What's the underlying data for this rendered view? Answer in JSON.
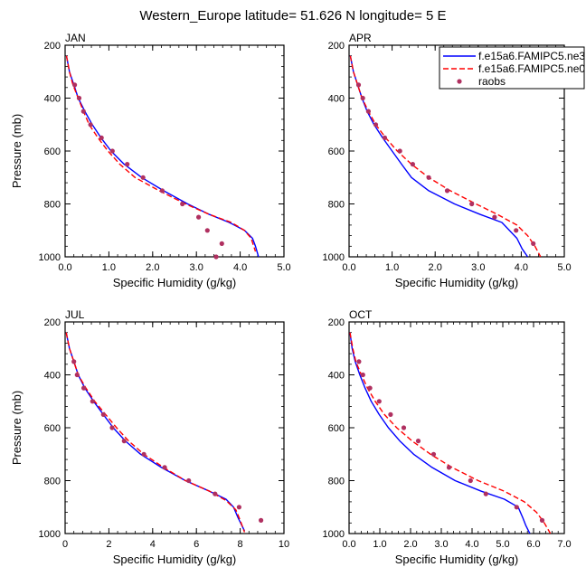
{
  "title": "Western_Europe  latitude= 51.626 N longitude= 5 E",
  "colors": {
    "model1": "#0000ff",
    "model2": "#ff0000",
    "obs": "#b03060"
  },
  "legend": {
    "placement": "top-right of APR panel",
    "entries": [
      {
        "label": "f.e15a6.FAMIPC5.ne3",
        "style": "solid",
        "color": "#0000ff"
      },
      {
        "label": "f.e15a6.FAMIPC5.ne0",
        "style": "dashed",
        "color": "#ff0000"
      },
      {
        "label": "raobs",
        "style": "marker",
        "color": "#b03060"
      }
    ]
  },
  "chart_data": [
    {
      "type": "line",
      "panel": "JAN",
      "title": "JAN",
      "xlabel": "Specific Humidity (g/kg)",
      "ylabel": "Pressure (mb)",
      "xlim": [
        0,
        5
      ],
      "ylim": [
        200,
        1000
      ],
      "y_reversed": true,
      "xticks": [
        0,
        1,
        2,
        3,
        4,
        5
      ],
      "xtick_labels": [
        "0.0",
        "1.0",
        "2.0",
        "3.0",
        "4.0",
        "5.0"
      ],
      "yticks": [
        200,
        400,
        600,
        800,
        1000
      ],
      "series": [
        {
          "kind": "solid",
          "points": [
            [
              0.03,
              240
            ],
            [
              0.1,
              300
            ],
            [
              0.2,
              350
            ],
            [
              0.3,
              400
            ],
            [
              0.45,
              450
            ],
            [
              0.62,
              500
            ],
            [
              0.82,
              550
            ],
            [
              1.05,
              600
            ],
            [
              1.35,
              650
            ],
            [
              1.75,
              700
            ],
            [
              2.25,
              750
            ],
            [
              2.8,
              800
            ],
            [
              3.3,
              840
            ],
            [
              3.75,
              870
            ],
            [
              4.1,
              900
            ],
            [
              4.28,
              930
            ],
            [
              4.35,
              960
            ],
            [
              4.42,
              1000
            ]
          ]
        },
        {
          "kind": "dashed",
          "points": [
            [
              0.03,
              240
            ],
            [
              0.1,
              300
            ],
            [
              0.18,
              350
            ],
            [
              0.3,
              400
            ],
            [
              0.42,
              450
            ],
            [
              0.55,
              500
            ],
            [
              0.75,
              550
            ],
            [
              0.98,
              600
            ],
            [
              1.25,
              650
            ],
            [
              1.6,
              700
            ],
            [
              2.15,
              750
            ],
            [
              2.75,
              800
            ],
            [
              3.3,
              840
            ],
            [
              3.8,
              870
            ],
            [
              4.1,
              900
            ],
            [
              4.25,
              930
            ],
            [
              4.35,
              980
            ]
          ]
        }
      ],
      "obs": [
        [
          0.22,
          350
        ],
        [
          0.32,
          400
        ],
        [
          0.42,
          450
        ],
        [
          0.58,
          500
        ],
        [
          0.83,
          550
        ],
        [
          1.08,
          600
        ],
        [
          1.42,
          650
        ],
        [
          1.78,
          700
        ],
        [
          2.22,
          750
        ],
        [
          2.68,
          800
        ],
        [
          3.05,
          850
        ],
        [
          3.25,
          900
        ],
        [
          3.58,
          950
        ],
        [
          3.45,
          1000
        ]
      ]
    },
    {
      "type": "line",
      "panel": "APR",
      "title": "APR",
      "xlabel": "Specific Humidity (g/kg)",
      "ylabel": "",
      "xlim": [
        0,
        5
      ],
      "ylim": [
        200,
        1000
      ],
      "y_reversed": true,
      "xticks": [
        0,
        1,
        2,
        3,
        4,
        5
      ],
      "xtick_labels": [
        "0.0",
        "1.0",
        "2.0",
        "3.0",
        "4.0",
        "5.0"
      ],
      "yticks": [
        200,
        400,
        600,
        800,
        1000
      ],
      "series": [
        {
          "kind": "solid",
          "points": [
            [
              0.03,
              240
            ],
            [
              0.1,
              300
            ],
            [
              0.2,
              350
            ],
            [
              0.3,
              400
            ],
            [
              0.42,
              450
            ],
            [
              0.58,
              500
            ],
            [
              0.78,
              550
            ],
            [
              1.0,
              600
            ],
            [
              1.22,
              650
            ],
            [
              1.45,
              700
            ],
            [
              1.85,
              750
            ],
            [
              2.45,
              800
            ],
            [
              3.05,
              840
            ],
            [
              3.55,
              870
            ],
            [
              3.9,
              930
            ],
            [
              4.02,
              970
            ],
            [
              4.15,
              1000
            ]
          ]
        },
        {
          "kind": "dashed",
          "points": [
            [
              0.03,
              240
            ],
            [
              0.1,
              300
            ],
            [
              0.2,
              350
            ],
            [
              0.3,
              400
            ],
            [
              0.45,
              450
            ],
            [
              0.62,
              500
            ],
            [
              0.85,
              550
            ],
            [
              1.12,
              600
            ],
            [
              1.45,
              650
            ],
            [
              1.85,
              700
            ],
            [
              2.35,
              750
            ],
            [
              2.95,
              800
            ],
            [
              3.45,
              840
            ],
            [
              3.9,
              880
            ],
            [
              4.15,
              920
            ],
            [
              4.32,
              960
            ],
            [
              4.45,
              1000
            ]
          ]
        }
      ],
      "obs": [
        [
          0.22,
          350
        ],
        [
          0.32,
          400
        ],
        [
          0.45,
          450
        ],
        [
          0.62,
          500
        ],
        [
          0.83,
          550
        ],
        [
          1.18,
          600
        ],
        [
          1.48,
          650
        ],
        [
          1.85,
          700
        ],
        [
          2.28,
          750
        ],
        [
          2.85,
          800
        ],
        [
          3.38,
          850
        ],
        [
          3.88,
          900
        ],
        [
          4.28,
          950
        ]
      ]
    },
    {
      "type": "line",
      "panel": "JUL",
      "title": "JUL",
      "xlabel": "Specific Humidity (g/kg)",
      "ylabel": "Pressure (mb)",
      "xlim": [
        0,
        10
      ],
      "ylim": [
        200,
        1000
      ],
      "y_reversed": true,
      "xticks": [
        0,
        2,
        4,
        6,
        8,
        10
      ],
      "xtick_labels": [
        "0",
        "2",
        "4",
        "6",
        "8",
        "10"
      ],
      "yticks": [
        200,
        400,
        600,
        800,
        1000
      ],
      "series": [
        {
          "kind": "solid",
          "points": [
            [
              0.05,
              240
            ],
            [
              0.2,
              300
            ],
            [
              0.4,
              350
            ],
            [
              0.6,
              400
            ],
            [
              0.9,
              450
            ],
            [
              1.3,
              500
            ],
            [
              1.75,
              550
            ],
            [
              2.2,
              600
            ],
            [
              2.75,
              650
            ],
            [
              3.45,
              700
            ],
            [
              4.4,
              750
            ],
            [
              5.5,
              800
            ],
            [
              6.6,
              840
            ],
            [
              7.35,
              870
            ],
            [
              7.7,
              900
            ],
            [
              7.9,
              940
            ],
            [
              8.2,
              990
            ]
          ]
        },
        {
          "kind": "dashed",
          "points": [
            [
              0.05,
              240
            ],
            [
              0.2,
              300
            ],
            [
              0.4,
              350
            ],
            [
              0.6,
              400
            ],
            [
              0.95,
              450
            ],
            [
              1.35,
              500
            ],
            [
              1.85,
              550
            ],
            [
              2.35,
              600
            ],
            [
              2.9,
              650
            ],
            [
              3.6,
              700
            ],
            [
              4.5,
              750
            ],
            [
              5.5,
              800
            ],
            [
              6.6,
              840
            ],
            [
              7.35,
              875
            ],
            [
              7.8,
              910
            ],
            [
              8.0,
              950
            ],
            [
              8.2,
              995
            ]
          ]
        }
      ],
      "obs": [
        [
          0.4,
          350
        ],
        [
          0.55,
          400
        ],
        [
          0.85,
          450
        ],
        [
          1.25,
          500
        ],
        [
          1.75,
          550
        ],
        [
          2.15,
          600
        ],
        [
          2.7,
          650
        ],
        [
          3.6,
          700
        ],
        [
          4.55,
          750
        ],
        [
          5.65,
          800
        ],
        [
          6.85,
          850
        ],
        [
          7.95,
          900
        ],
        [
          8.95,
          950
        ]
      ]
    },
    {
      "type": "line",
      "panel": "OCT",
      "title": "OCT",
      "xlabel": "Specific Humidity (g/kg)",
      "ylabel": "",
      "xlim": [
        0,
        7
      ],
      "ylim": [
        200,
        1000
      ],
      "y_reversed": true,
      "xticks": [
        0,
        1,
        2,
        3,
        4,
        5,
        6,
        7
      ],
      "xtick_labels": [
        "0.0",
        "1.0",
        "2.0",
        "3.0",
        "4.0",
        "5.0",
        "6.0",
        "7.0"
      ],
      "yticks": [
        200,
        400,
        600,
        800,
        1000
      ],
      "series": [
        {
          "kind": "solid",
          "points": [
            [
              0.03,
              240
            ],
            [
              0.1,
              300
            ],
            [
              0.2,
              350
            ],
            [
              0.35,
              400
            ],
            [
              0.52,
              450
            ],
            [
              0.72,
              500
            ],
            [
              0.98,
              550
            ],
            [
              1.28,
              600
            ],
            [
              1.65,
              650
            ],
            [
              2.1,
              700
            ],
            [
              2.7,
              750
            ],
            [
              3.45,
              800
            ],
            [
              4.3,
              840
            ],
            [
              5.05,
              870
            ],
            [
              5.5,
              900
            ],
            [
              5.65,
              940
            ],
            [
              5.75,
              970
            ],
            [
              5.88,
              1000
            ]
          ]
        },
        {
          "kind": "dashed",
          "points": [
            [
              0.03,
              240
            ],
            [
              0.12,
              300
            ],
            [
              0.22,
              350
            ],
            [
              0.4,
              400
            ],
            [
              0.6,
              450
            ],
            [
              0.85,
              500
            ],
            [
              1.15,
              550
            ],
            [
              1.55,
              600
            ],
            [
              2.05,
              650
            ],
            [
              2.65,
              700
            ],
            [
              3.35,
              750
            ],
            [
              4.2,
              800
            ],
            [
              5.05,
              840
            ],
            [
              5.7,
              880
            ],
            [
              6.1,
              920
            ],
            [
              6.35,
              960
            ],
            [
              6.55,
              1000
            ]
          ]
        }
      ],
      "obs": [
        [
          0.32,
          350
        ],
        [
          0.45,
          400
        ],
        [
          0.68,
          450
        ],
        [
          0.98,
          500
        ],
        [
          1.35,
          550
        ],
        [
          1.78,
          600
        ],
        [
          2.25,
          650
        ],
        [
          2.75,
          700
        ],
        [
          3.25,
          750
        ],
        [
          3.95,
          800
        ],
        [
          4.45,
          850
        ],
        [
          5.45,
          900
        ],
        [
          6.28,
          950
        ]
      ]
    }
  ]
}
